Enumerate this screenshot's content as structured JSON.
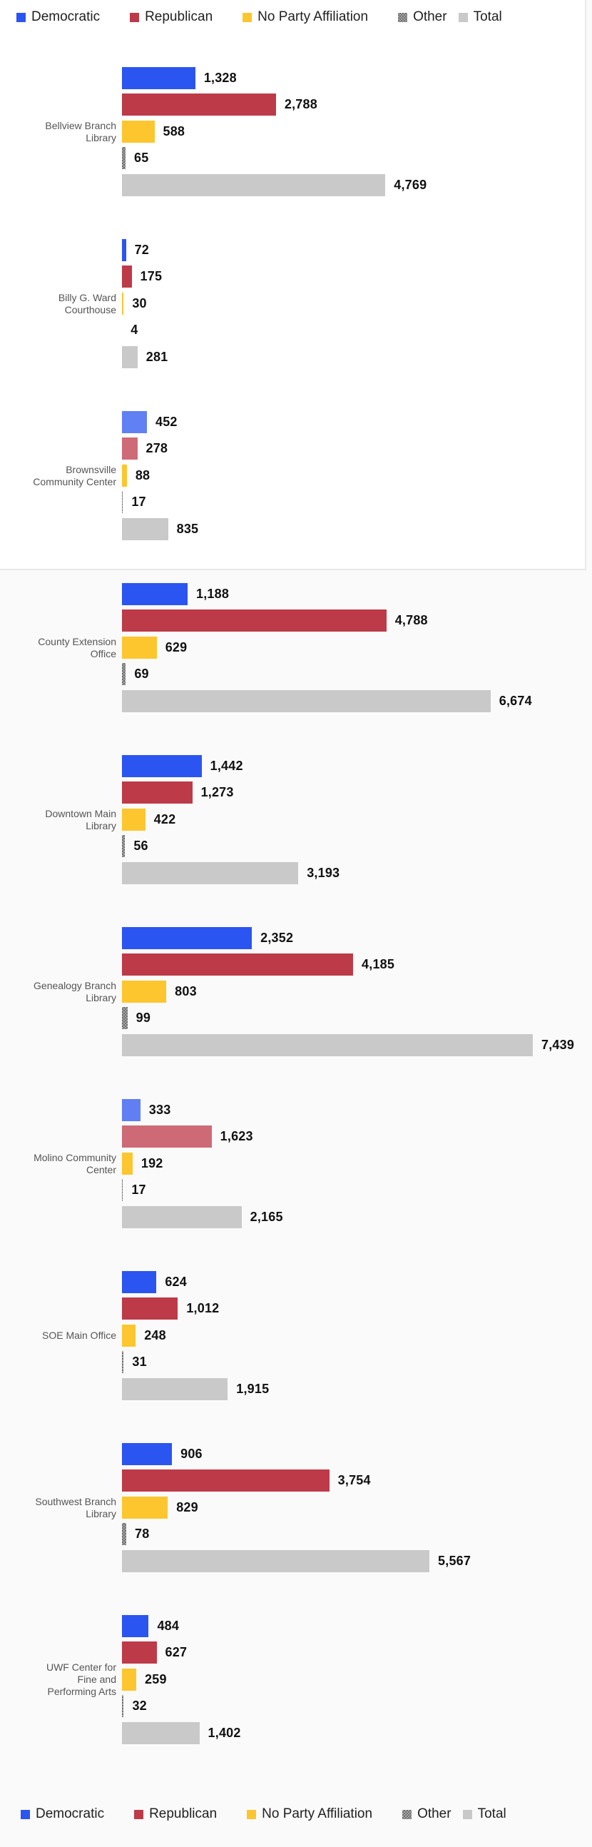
{
  "page": {
    "background_color": "#fafafa",
    "panel": {
      "background_color": "#ffffff",
      "border_color": "#e9e9e9"
    }
  },
  "chart_data": {
    "type": "bar",
    "orientation": "horizontal",
    "title": "",
    "xlabel": "",
    "ylabel": "",
    "grid": false,
    "legend_position": [
      "top",
      "bottom"
    ],
    "value_axis": {
      "visible": false,
      "min": 0,
      "max": 7439
    },
    "series": [
      {
        "name": "Democratic",
        "color": "#2b55f0",
        "pattern": "solid"
      },
      {
        "name": "Republican",
        "color": "#bd3a48",
        "pattern": "solid"
      },
      {
        "name": "No Party Affiliation",
        "color": "#fdc62f",
        "pattern": "solid"
      },
      {
        "name": "Other",
        "color": "#8a8a8a",
        "pattern": "checker"
      },
      {
        "name": "Total",
        "color": "#c9c9c9",
        "pattern": "solid"
      }
    ],
    "groups": [
      {
        "category": "Bellview Branch Library",
        "category_lines": [
          "Bellview Branch",
          "Library"
        ],
        "values": [
          1328,
          2788,
          588,
          65,
          4769
        ],
        "value_labels": [
          "1,328",
          "2,788",
          "588",
          "65",
          "4,769"
        ],
        "faded_series": []
      },
      {
        "category": "Billy G. Ward Courthouse",
        "category_lines": [
          "Billy G. Ward",
          "Courthouse"
        ],
        "values": [
          72,
          175,
          30,
          4,
          281
        ],
        "value_labels": [
          "72",
          "175",
          "30",
          "4",
          "281"
        ],
        "faded_series": []
      },
      {
        "category": "Brownsville Community Center",
        "category_lines": [
          "Brownsville",
          "Community Center"
        ],
        "values": [
          452,
          278,
          88,
          17,
          835
        ],
        "value_labels": [
          "452",
          "278",
          "88",
          "17",
          "835"
        ],
        "faded_series": [
          0,
          1
        ]
      },
      {
        "category": "County Extension Office",
        "category_lines": [
          "County Extension",
          "Office"
        ],
        "values": [
          1188,
          4788,
          629,
          69,
          6674
        ],
        "value_labels": [
          "1,188",
          "4,788",
          "629",
          "69",
          "6,674"
        ],
        "faded_series": []
      },
      {
        "category": "Downtown Main Library",
        "category_lines": [
          "Downtown Main",
          "Library"
        ],
        "values": [
          1442,
          1273,
          422,
          56,
          3193
        ],
        "value_labels": [
          "1,442",
          "1,273",
          "422",
          "56",
          "3,193"
        ],
        "faded_series": []
      },
      {
        "category": "Genealogy Branch Library",
        "category_lines": [
          "Genealogy Branch",
          "Library"
        ],
        "values": [
          2352,
          4185,
          803,
          99,
          7439
        ],
        "value_labels": [
          "2,352",
          "4,185",
          "803",
          "99",
          "7,439"
        ],
        "faded_series": []
      },
      {
        "category": "Molino Community Center",
        "category_lines": [
          "Molino Community",
          "Center"
        ],
        "values": [
          333,
          1623,
          192,
          17,
          2165
        ],
        "value_labels": [
          "333",
          "1,623",
          "192",
          "17",
          "2,165"
        ],
        "faded_series": [
          0,
          1
        ]
      },
      {
        "category": "SOE Main Office",
        "category_lines": [
          "SOE Main Office"
        ],
        "values": [
          624,
          1012,
          248,
          31,
          1915
        ],
        "value_labels": [
          "624",
          "1,012",
          "248",
          "31",
          "1,915"
        ],
        "faded_series": []
      },
      {
        "category": "Southwest Branch Library",
        "category_lines": [
          "Southwest Branch",
          "Library"
        ],
        "values": [
          906,
          3754,
          829,
          78,
          5567
        ],
        "value_labels": [
          "906",
          "3,754",
          "829",
          "78",
          "5,567"
        ],
        "faded_series": []
      },
      {
        "category": "UWF Center for Fine and Performing Arts",
        "category_lines": [
          "UWF Center for",
          "Fine and",
          "Performing Arts"
        ],
        "values": [
          484,
          627,
          259,
          32,
          1402
        ],
        "value_labels": [
          "484",
          "627",
          "259",
          "32",
          "1,402"
        ],
        "faded_series": []
      }
    ]
  }
}
